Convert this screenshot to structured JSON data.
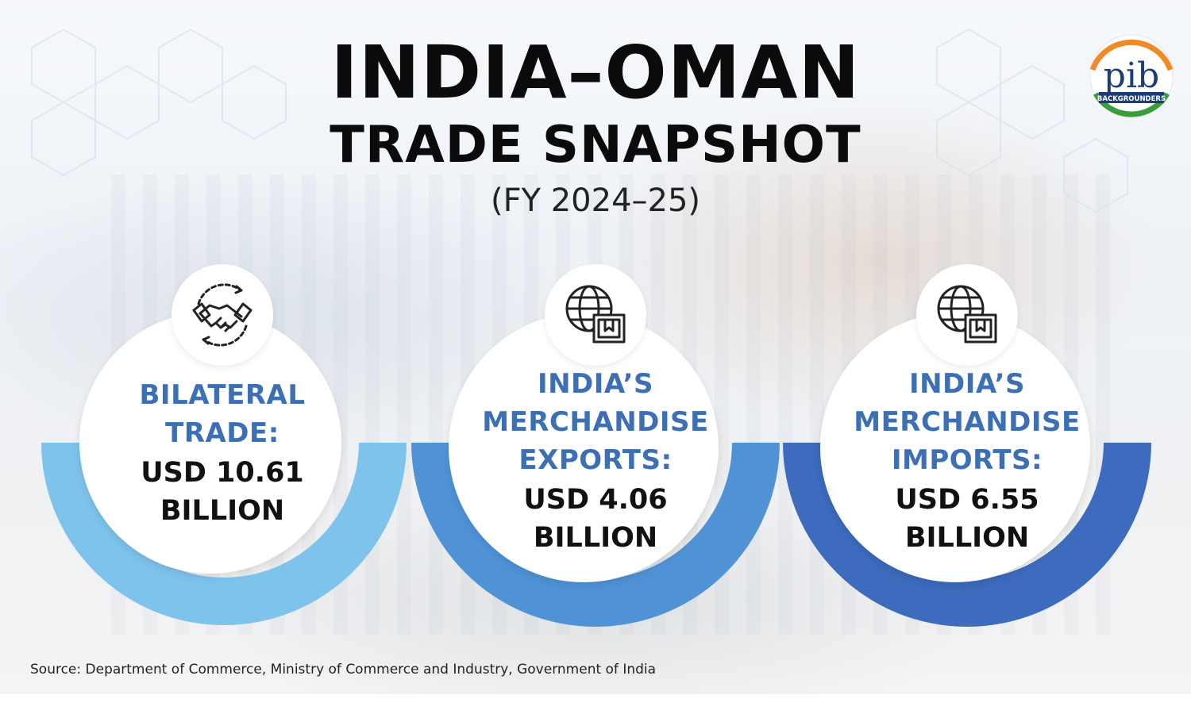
{
  "header": {
    "title_line1": "INDIA–OMAN",
    "title_line2": "TRADE SNAPSHOT",
    "subtitle": "(FY 2024–25)"
  },
  "logo": {
    "text": "pib",
    "tagline": "BACKGROUNDERS",
    "icon": "pib-logo"
  },
  "cards": [
    {
      "icon": "handshake-icon",
      "label_lines": [
        "BILATERAL",
        "TRADE:"
      ],
      "value_lines": [
        "USD 10.61",
        "BILLION"
      ],
      "ring_color": "#7ec3ec"
    },
    {
      "icon": "globe-export-icon",
      "label_lines": [
        "INDIA’S",
        "MERCHANDISE",
        "EXPORTS:"
      ],
      "value_lines": [
        "USD 4.06",
        "BILLION"
      ],
      "ring_color": "#4f93d6"
    },
    {
      "icon": "globe-import-icon",
      "label_lines": [
        "INDIA’S",
        "MERCHANDISE",
        "IMPORTS:"
      ],
      "value_lines": [
        "USD 6.55",
        "BILLION"
      ],
      "ring_color": "#3d6bbd"
    }
  ],
  "colors": {
    "label": "#3d6fb4",
    "value": "#111111",
    "title": "#0b0b0b"
  },
  "footer": {
    "source": "Source: Department of Commerce, Ministry of Commerce and Industry, Government of India"
  }
}
